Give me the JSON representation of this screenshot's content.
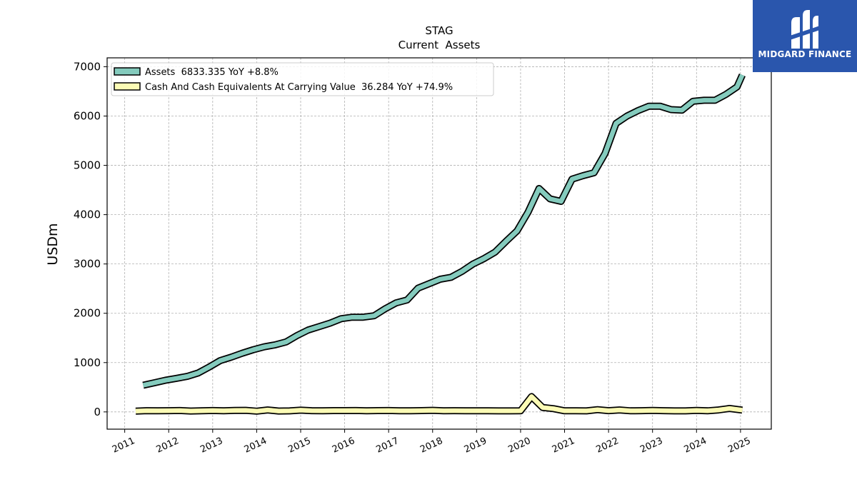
{
  "brand": {
    "name": "MIDGARD FINANCE",
    "logo_icon": "midgard-logo-icon",
    "background_color": "#2a56ad"
  },
  "chart_data": {
    "type": "line",
    "title": "STAG",
    "subtitle": "Current  Assets",
    "xlabel": "",
    "ylabel": "USDm",
    "xlim": [
      2010.6,
      2025.7
    ],
    "ylim": [
      -350,
      7180
    ],
    "x_ticks": [
      "2011",
      "2012",
      "2013",
      "2014",
      "2015",
      "2016",
      "2017",
      "2018",
      "2019",
      "2020",
      "2021",
      "2022",
      "2023",
      "2024",
      "2025"
    ],
    "y_ticks": [
      0,
      1000,
      2000,
      3000,
      4000,
      5000,
      6000,
      7000
    ],
    "grid": true,
    "legend_position": "top-left",
    "series": [
      {
        "name": "Assets  6833.335 YoY +8.8%",
        "color": "#84cbbd",
        "x": [
          2011.42,
          2011.67,
          2011.92,
          2012.17,
          2012.42,
          2012.67,
          2012.92,
          2013.17,
          2013.42,
          2013.67,
          2013.92,
          2014.17,
          2014.42,
          2014.67,
          2014.92,
          2015.17,
          2015.42,
          2015.67,
          2015.92,
          2016.17,
          2016.42,
          2016.67,
          2016.92,
          2017.17,
          2017.42,
          2017.67,
          2017.92,
          2018.17,
          2018.42,
          2018.67,
          2018.92,
          2019.17,
          2019.42,
          2019.67,
          2019.92,
          2020.17,
          2020.42,
          2020.67,
          2020.92,
          2021.17,
          2021.42,
          2021.67,
          2021.92,
          2022.17,
          2022.42,
          2022.67,
          2022.92,
          2023.17,
          2023.42,
          2023.67,
          2023.92,
          2024.17,
          2024.42,
          2024.67,
          2024.92,
          2025.04
        ],
        "values": [
          540,
          590,
          640,
          680,
          720,
          790,
          910,
          1040,
          1110,
          1190,
          1260,
          1320,
          1360,
          1420,
          1550,
          1660,
          1730,
          1800,
          1890,
          1920,
          1920,
          1950,
          2090,
          2210,
          2270,
          2510,
          2600,
          2690,
          2730,
          2850,
          3000,
          3110,
          3240,
          3460,
          3670,
          4050,
          4530,
          4320,
          4270,
          4720,
          4790,
          4850,
          5240,
          5850,
          6000,
          6110,
          6200,
          6200,
          6130,
          6120,
          6300,
          6320,
          6320,
          6440,
          6590,
          6833
        ]
      },
      {
        "name": "Cash And Cash Equivalents At Carrying Value  36.284 YoY +74.9%",
        "color": "#fbfbb5",
        "x": [
          2011.25,
          2011.5,
          2011.75,
          2012.0,
          2012.25,
          2012.5,
          2012.75,
          2013.0,
          2013.25,
          2013.5,
          2013.75,
          2014.0,
          2014.25,
          2014.5,
          2014.75,
          2015.0,
          2015.25,
          2015.5,
          2015.75,
          2016.0,
          2016.25,
          2016.5,
          2016.75,
          2017.0,
          2017.25,
          2017.5,
          2017.75,
          2018.0,
          2018.25,
          2018.5,
          2018.75,
          2019.0,
          2019.25,
          2019.5,
          2019.75,
          2020.0,
          2020.25,
          2020.5,
          2020.75,
          2021.0,
          2021.25,
          2021.5,
          2021.75,
          2022.0,
          2022.25,
          2022.5,
          2022.75,
          2023.0,
          2023.25,
          2023.5,
          2023.75,
          2024.0,
          2024.25,
          2024.5,
          2024.75,
          2025.04
        ],
        "values": [
          15,
          25,
          22,
          25,
          28,
          18,
          22,
          28,
          24,
          30,
          32,
          15,
          40,
          18,
          20,
          35,
          25,
          24,
          26,
          27,
          28,
          24,
          26,
          28,
          24,
          22,
          26,
          32,
          24,
          25,
          23,
          22,
          23,
          20,
          21,
          22,
          310,
          90,
          65,
          22,
          22,
          20,
          45,
          25,
          40,
          22,
          25,
          30,
          25,
          20,
          20,
          30,
          22,
          40,
          70,
          36.284
        ]
      }
    ]
  }
}
